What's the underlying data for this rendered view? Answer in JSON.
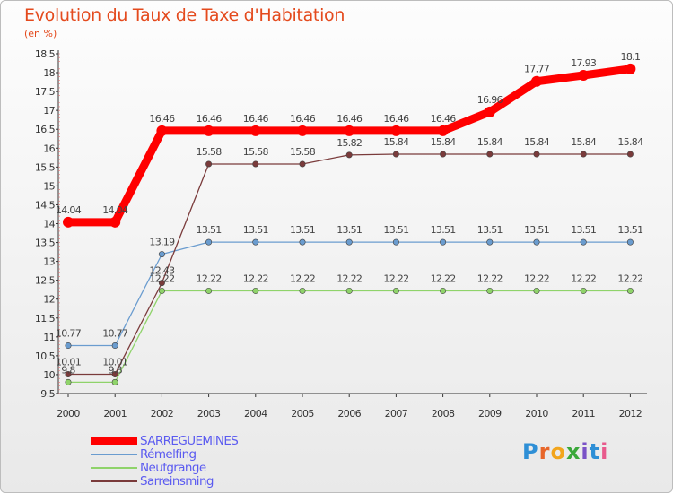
{
  "header": {
    "title": "Evolution du Taux de Taxe d'Habitation",
    "subtitle": "(en %)"
  },
  "logo": {
    "letters": [
      "P",
      "r",
      "o",
      "x",
      "i",
      "t",
      "i"
    ],
    "colors": [
      "#2e8fd6",
      "#e8662a",
      "#f2a51c",
      "#3aa83a",
      "#7a52c7",
      "#2e8fd6",
      "#e85a8c"
    ]
  },
  "chart_data": {
    "type": "line",
    "title": "Evolution du Taux de Taxe d'Habitation",
    "ylabel": "(en %)",
    "xlabel": "",
    "ylim": [
      9.5,
      18.5
    ],
    "yticks": [
      "9.5",
      "10",
      "10.5",
      "11",
      "11.5",
      "12",
      "12.5",
      "13",
      "13.5",
      "14",
      "14.5",
      "15",
      "15.5",
      "16",
      "16.5",
      "17",
      "17.5",
      "18",
      "18.5"
    ],
    "categories": [
      "2000",
      "2001",
      "2002",
      "2003",
      "2004",
      "2005",
      "2006",
      "2007",
      "2008",
      "2009",
      "2010",
      "2011",
      "2012"
    ],
    "series": [
      {
        "name": "Neufgrange",
        "color": "#8fd36a",
        "values": [
          9.8,
          9.8,
          12.22,
          12.22,
          12.22,
          12.22,
          12.22,
          12.22,
          12.22,
          12.22,
          12.22,
          12.22,
          12.22
        ],
        "labels": [
          "9.8",
          "9.8",
          "12.22",
          "12.22",
          "12.22",
          "12.22",
          "12.22",
          "12.22",
          "12.22",
          "12.22",
          "12.22",
          "12.22",
          "12.22"
        ]
      },
      {
        "name": "Rémelfing",
        "color": "#6a9ccf",
        "values": [
          10.77,
          10.77,
          13.19,
          13.51,
          13.51,
          13.51,
          13.51,
          13.51,
          13.51,
          13.51,
          13.51,
          13.51,
          13.51
        ],
        "labels": [
          "10.77",
          "10.77",
          "13.19",
          "13.51",
          "13.51",
          "13.51",
          "13.51",
          "13.51",
          "13.51",
          "13.51",
          "13.51",
          "13.51",
          "13.51"
        ]
      },
      {
        "name": "Sarreinsming",
        "color": "#7a3b3b",
        "values": [
          10.01,
          10.01,
          12.43,
          15.58,
          15.58,
          15.58,
          15.82,
          15.84,
          15.84,
          15.84,
          15.84,
          15.84,
          15.84
        ],
        "labels": [
          "10.01",
          "10.01",
          "12.43",
          "15.58",
          "15.58",
          "15.58",
          "15.82",
          "15.84",
          "15.84",
          "15.84",
          "15.84",
          "15.84",
          "15.84"
        ]
      },
      {
        "name": "SARREGUEMINES",
        "color": "#ff0000",
        "values": [
          14.04,
          14.04,
          16.46,
          16.46,
          16.46,
          16.46,
          16.46,
          16.46,
          16.46,
          16.96,
          17.77,
          17.93,
          18.1
        ],
        "labels": [
          "14.04",
          "14.04",
          "16.46",
          "16.46",
          "16.46",
          "16.46",
          "16.46",
          "16.46",
          "16.46",
          "16.96",
          "17.77",
          "17.93",
          "18.1"
        ]
      }
    ],
    "legend": [
      "SARREGUEMINES",
      "Rémelfing",
      "Neufgrange",
      "Sarreinsming"
    ],
    "legend_placement": "bottom-left",
    "grid": false
  }
}
